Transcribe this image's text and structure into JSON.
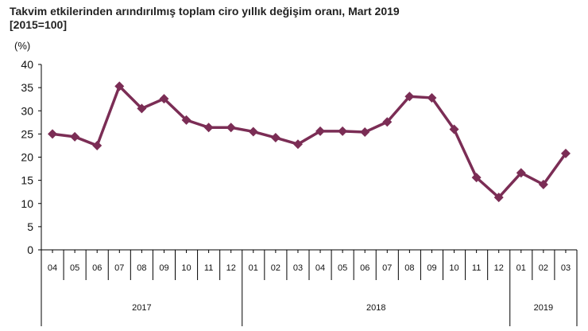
{
  "chart_data": {
    "type": "line",
    "title": "Takvim etkilerinden arındırılmış toplam ciro yıllık değişim oranı, Mart 2019",
    "subtitle": "[2015=100]",
    "ylabel": "(%)",
    "ylim": [
      0,
      40
    ],
    "yticks": [
      0,
      5,
      10,
      15,
      20,
      25,
      30,
      35,
      40
    ],
    "grid": false,
    "line_color": "#7b2d55",
    "categories": [
      "04",
      "05",
      "06",
      "07",
      "08",
      "09",
      "10",
      "11",
      "12",
      "01",
      "02",
      "03",
      "04",
      "05",
      "06",
      "07",
      "08",
      "09",
      "10",
      "11",
      "12",
      "01",
      "02",
      "03"
    ],
    "years": [
      {
        "label": "2017",
        "count": 9
      },
      {
        "label": "2018",
        "count": 12
      },
      {
        "label": "2019",
        "count": 3
      }
    ],
    "values": [
      25.0,
      24.4,
      22.5,
      35.3,
      30.5,
      32.6,
      28.0,
      26.4,
      26.4,
      25.5,
      24.2,
      22.8,
      25.6,
      25.6,
      25.4,
      27.6,
      33.1,
      32.8,
      26.0,
      15.6,
      11.3,
      16.6,
      14.1,
      20.8
    ]
  }
}
